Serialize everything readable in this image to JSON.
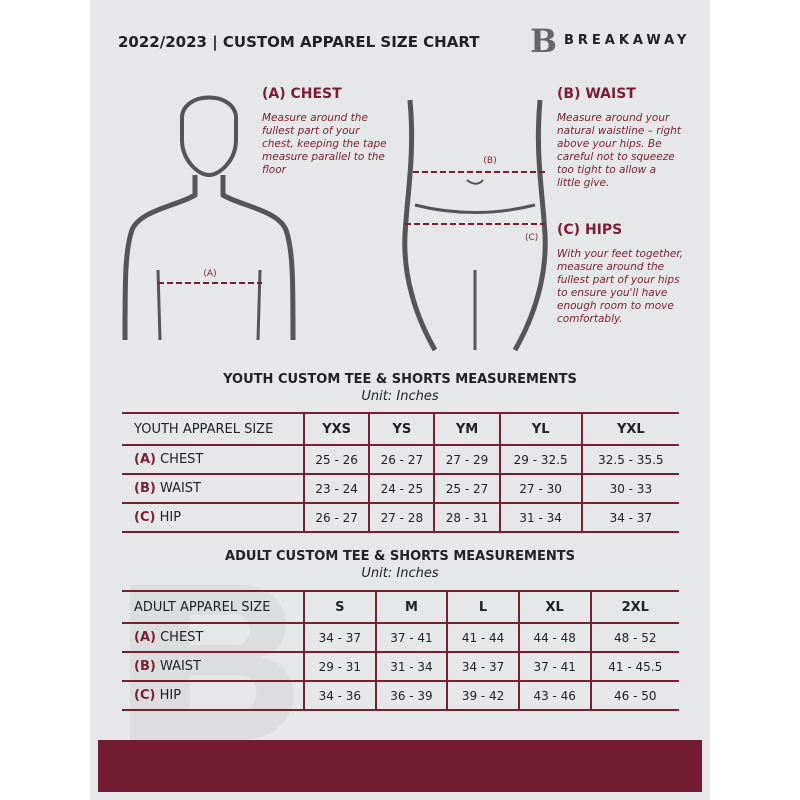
{
  "header": {
    "title": "2022/2023  |  CUSTOM APPAREL SIZE CHART",
    "brand": "BREAKAWAY",
    "logo_letter": "B"
  },
  "guides": {
    "chest": {
      "heading": "(A) CHEST",
      "text": "Measure around the fullest part of your chest, keeping the tape measure parallel to the floor",
      "marker": "(A)"
    },
    "waist": {
      "heading": "(B) WAIST",
      "text": "Measure around your natural waistline – right above your hips. Be careful not to squeeze too tight to allow a little give.",
      "marker": "(B)"
    },
    "hips": {
      "heading": "(C) HIPS",
      "text": "With your feet together, measure around the fullest part of your hips to ensure you'll have enough room to move comfortably.",
      "marker": "(C)"
    }
  },
  "youth": {
    "title": "YOUTH CUSTOM TEE & SHORTS MEASUREMENTS",
    "unit": "Unit: Inches",
    "size_label": "YOUTH APPAREL SIZE",
    "sizes": [
      "YXS",
      "YS",
      "YM",
      "YL",
      "YXL"
    ],
    "rows": [
      {
        "key": "(A)",
        "name": "CHEST",
        "values": [
          "25 - 26",
          "26 - 27",
          "27 - 29",
          "29 - 32.5",
          "32.5 - 35.5"
        ]
      },
      {
        "key": "(B)",
        "name": "WAIST",
        "values": [
          "23 - 24",
          "24 - 25",
          "25 - 27",
          "27 - 30",
          "30 - 33"
        ]
      },
      {
        "key": "(C)",
        "name": "HIP",
        "values": [
          "26 - 27",
          "27 - 28",
          "28 - 31",
          "31 - 34",
          "34 - 37"
        ]
      }
    ]
  },
  "adult": {
    "title": "ADULT CUSTOM TEE & SHORTS MEASUREMENTS",
    "unit": "Unit: Inches",
    "size_label": "ADULT APPAREL SIZE",
    "sizes": [
      "S",
      "M",
      "L",
      "XL",
      "2XL"
    ],
    "rows": [
      {
        "key": "(A)",
        "name": "CHEST",
        "values": [
          "34 - 37",
          "37 - 41",
          "41 - 44",
          "44 - 48",
          "48 - 52"
        ]
      },
      {
        "key": "(B)",
        "name": "WAIST",
        "values": [
          "29 - 31",
          "31 - 34",
          "34 - 37",
          "37 - 41",
          "41 - 45.5"
        ]
      },
      {
        "key": "(C)",
        "name": "HIP",
        "values": [
          "34 - 36",
          "36 - 39",
          "39 - 42",
          "43 - 46",
          "46 - 50"
        ]
      }
    ]
  },
  "colors": {
    "accent": "#731c31",
    "background": "#e6e7e8"
  }
}
